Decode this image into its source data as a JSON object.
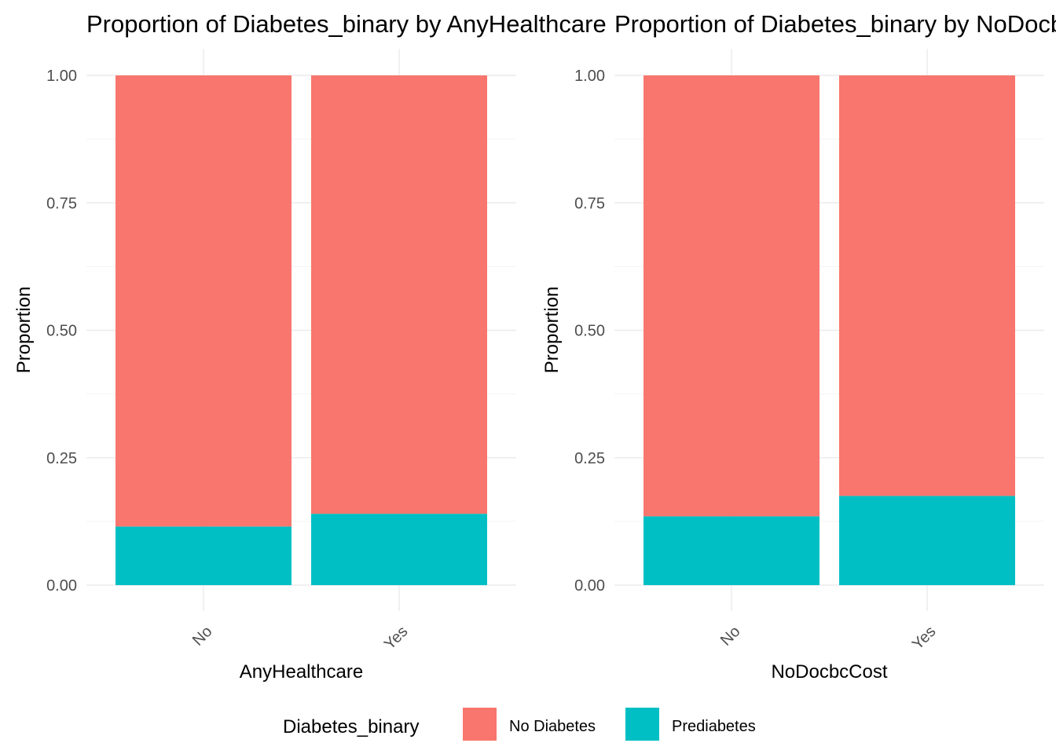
{
  "chart_data": [
    {
      "type": "bar",
      "stacked": true,
      "title": "Proportion of Diabetes_binary by AnyHealthcare",
      "xlabel": "AnyHealthcare",
      "ylabel": "Proportion",
      "categories": [
        "No",
        "Yes"
      ],
      "series": [
        {
          "name": "No Diabetes",
          "values": [
            0.885,
            0.86
          ]
        },
        {
          "name": "Prediabetes",
          "values": [
            0.115,
            0.14
          ]
        }
      ],
      "ylim": [
        0,
        1
      ],
      "yticks": [
        "0.00",
        "0.25",
        "0.50",
        "0.75",
        "1.00"
      ],
      "grid": true
    },
    {
      "type": "bar",
      "stacked": true,
      "title": "Proportion of Diabetes_binary by NoDocbcCost",
      "xlabel": "NoDocbcCost",
      "ylabel": "Proportion",
      "categories": [
        "No",
        "Yes"
      ],
      "series": [
        {
          "name": "No Diabetes",
          "values": [
            0.865,
            0.825
          ]
        },
        {
          "name": "Prediabetes",
          "values": [
            0.135,
            0.175
          ]
        }
      ],
      "ylim": [
        0,
        1
      ],
      "yticks": [
        "0.00",
        "0.25",
        "0.50",
        "0.75",
        "1.00"
      ],
      "grid": true
    }
  ],
  "legend": {
    "title": "Diabetes_binary",
    "position": "bottom",
    "items": [
      {
        "label": "No Diabetes",
        "color": "#F8766D"
      },
      {
        "label": "Prediabetes",
        "color": "#00BFC4"
      }
    ]
  },
  "colors": {
    "No Diabetes": "#F8766D",
    "Prediabetes": "#00BFC4"
  }
}
